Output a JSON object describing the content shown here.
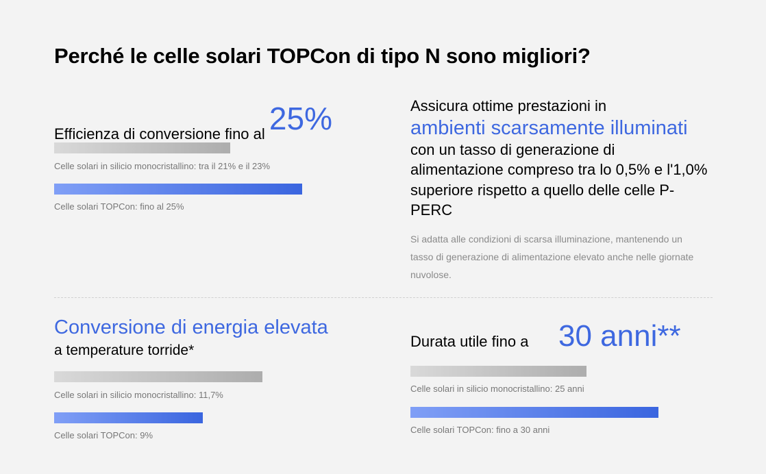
{
  "title": "Perché le celle solari TOPCon di tipo N sono migliori?",
  "colors": {
    "accent": "#3e68e0",
    "text": "#000000",
    "caption": "#777777"
  },
  "efficiency": {
    "heading": "Efficienza di conversione fino al",
    "highlight": "25%",
    "bars": [
      {
        "label": "Celle solari in silicio monocristallino: tra il 21% e il 23%",
        "fill": 0.71
      },
      {
        "label": "Celle solari TOPCon: fino al 25%",
        "fill": 1.0
      }
    ]
  },
  "low_light": {
    "line1": "Assicura ottime prestazioni in",
    "highlight": "ambienti scarsamente illuminati",
    "rest": "con un tasso di generazione di alimentazione compreso tra lo 0,5% e l'1,0% superiore rispetto a quello delle celle P-PERC",
    "description": "Si adatta alle condizioni di scarsa illuminazione, mantenendo un tasso di generazione di alimentazione elevato anche nelle giornate nuvolose."
  },
  "temperature": {
    "highlight": "Conversione di energia elevata",
    "subheading": "a temperature torride*",
    "bars": [
      {
        "label": "Celle solari in silicio monocristallino: 11,7%",
        "fill": 0.84
      },
      {
        "label": "Celle solari TOPCon: 9%",
        "fill": 0.6
      }
    ]
  },
  "lifetime": {
    "heading": "Durata utile fino a",
    "highlight": "30 anni**",
    "bars": [
      {
        "label": "Celle solari in silicio monocristallino: 25 anni",
        "fill": 0.71
      },
      {
        "label": "Celle solari TOPCon: fino a 30 anni",
        "fill": 1.0
      }
    ]
  }
}
